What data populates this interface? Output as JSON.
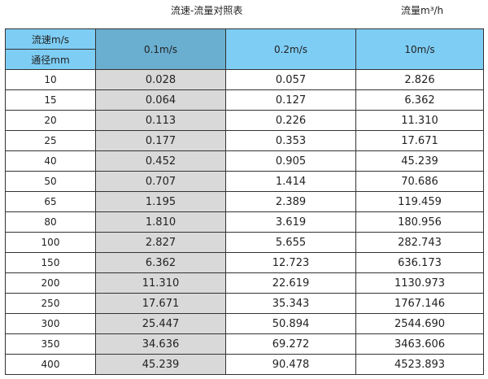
{
  "title": "流速-流量对照表",
  "unit_label": "流量m³/h",
  "header": {
    "velocity_label": "流速m/s",
    "diameter_label": "通径mm",
    "columns": [
      "0.1m/s",
      "0.2m/s",
      "10m/s"
    ]
  },
  "colors": {
    "header": "#7ecdf4",
    "header_highlight": "#6aaed0",
    "highlight_column": "#d9d9d9"
  },
  "rows": [
    [
      "10",
      "0.028",
      "0.057",
      "2.826"
    ],
    [
      "15",
      "0.064",
      "0.127",
      "6.362"
    ],
    [
      "20",
      "0.113",
      "0.226",
      "11.310"
    ],
    [
      "25",
      "0.177",
      "0.353",
      "17.671"
    ],
    [
      "40",
      "0.452",
      "0.905",
      "45.239"
    ],
    [
      "50",
      "0.707",
      "1.414",
      "70.686"
    ],
    [
      "65",
      "1.195",
      "2.389",
      "119.459"
    ],
    [
      "80",
      "1.810",
      "3.619",
      "180.956"
    ],
    [
      "100",
      "2.827",
      "5.655",
      "282.743"
    ],
    [
      "150",
      "6.362",
      "12.723",
      "636.173"
    ],
    [
      "200",
      "11.310",
      "22.619",
      "1130.973"
    ],
    [
      "250",
      "17.671",
      "35.343",
      "1767.146"
    ],
    [
      "300",
      "25.447",
      "50.894",
      "2544.690"
    ],
    [
      "350",
      "34.636",
      "69.272",
      "3463.606"
    ],
    [
      "400",
      "45.239",
      "90.478",
      "4523.893"
    ]
  ]
}
